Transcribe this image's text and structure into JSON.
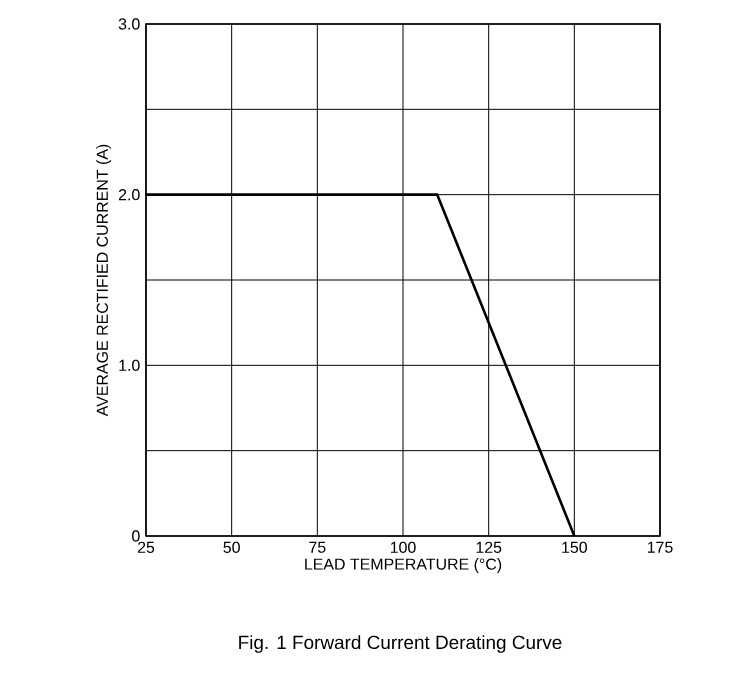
{
  "chart_data": {
    "type": "line",
    "title": "Fig. 1  Forward Current Derating Curve",
    "xlabel": "LEAD TEMPERATURE (°C)",
    "ylabel": "AVERAGE RECTIFIED CURRENT (A)",
    "x": [
      25,
      110,
      150
    ],
    "series": [
      {
        "color": "#000000",
        "values": [
          2,
          2,
          0
        ]
      }
    ],
    "xlim": [
      25,
      175
    ],
    "xticks": [
      25,
      50,
      75,
      100,
      125,
      150,
      175
    ],
    "ylim": [
      0,
      3
    ],
    "yticks": [
      0,
      {
        "value": 0.5,
        "label": null
      },
      {
        "value": 1,
        "label": "1.0"
      },
      {
        "value": 1.5,
        "label": null
      },
      {
        "value": 2,
        "label": "2.0"
      },
      {
        "value": 2.5,
        "label": null
      },
      {
        "value": 3,
        "label": "3.0"
      }
    ],
    "grid": true
  }
}
